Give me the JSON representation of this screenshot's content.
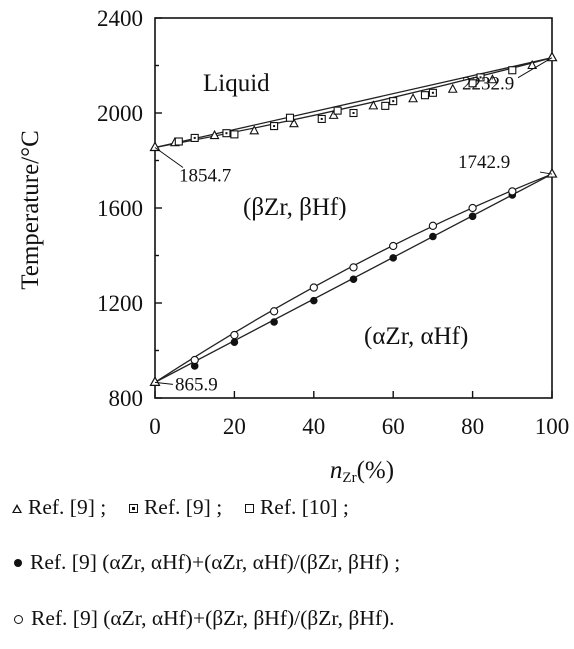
{
  "chart_data": {
    "type": "scatter",
    "title": "",
    "xlabel_main": "n",
    "xlabel_sub": "Zr",
    "xlabel_unit": "(%)",
    "ylabel": "Temperature/°C",
    "xlim": [
      0,
      100
    ],
    "ylim": [
      800,
      2400
    ],
    "x_ticks": [
      "0",
      "20",
      "40",
      "60",
      "80",
      "100"
    ],
    "y_ticks": [
      "800",
      "1200",
      "1600",
      "2000",
      "2400"
    ],
    "regions": {
      "liquid": "Liquid",
      "beta": "(βZr, βHf)",
      "alpha": "(αZr, αHf)"
    },
    "annotations": [
      {
        "label": "1854.7",
        "x": 0,
        "y": 1854.7
      },
      {
        "label": "2232.9",
        "x": 100,
        "y": 2232.9
      },
      {
        "label": "1742.9",
        "x": 100,
        "y": 1742.9
      },
      {
        "label": "865.9",
        "x": 0,
        "y": 865.9
      }
    ],
    "lines": [
      {
        "x": [
          0,
          100
        ],
        "y": [
          1854.7,
          2232.9
        ]
      },
      {
        "x": [
          0,
          100
        ],
        "y": [
          1854.7,
          2232.9
        ],
        "bow": 8
      },
      {
        "x": [
          0,
          100
        ],
        "y": [
          865.9,
          1742.9
        ]
      },
      {
        "x": [
          0,
          100
        ],
        "y": [
          865.9,
          1742.9
        ],
        "bow": -25
      }
    ],
    "series": [
      {
        "marker": "triangle",
        "points": [
          [
            5,
            1875
          ],
          [
            15,
            1905
          ],
          [
            25,
            1925
          ],
          [
            35,
            1955
          ],
          [
            45,
            1990
          ],
          [
            55,
            2030
          ],
          [
            65,
            2060
          ],
          [
            75,
            2100
          ],
          [
            85,
            2140
          ],
          [
            95,
            2200
          ]
        ]
      },
      {
        "marker": "square-dot",
        "points": [
          [
            10,
            1895
          ],
          [
            18,
            1915
          ],
          [
            30,
            1945
          ],
          [
            42,
            1975
          ],
          [
            50,
            2000
          ],
          [
            60,
            2050
          ],
          [
            70,
            2085
          ],
          [
            82,
            2150
          ]
        ]
      },
      {
        "marker": "square",
        "points": [
          [
            6,
            1880
          ],
          [
            20,
            1910
          ],
          [
            34,
            1980
          ],
          [
            46,
            2010
          ],
          [
            58,
            2030
          ],
          [
            68,
            2075
          ],
          [
            80,
            2125
          ],
          [
            90,
            2180
          ]
        ]
      },
      {
        "marker": "dot",
        "points": [
          [
            10,
            935
          ],
          [
            20,
            1035
          ],
          [
            30,
            1120
          ],
          [
            40,
            1210
          ],
          [
            50,
            1300
          ],
          [
            60,
            1390
          ],
          [
            70,
            1480
          ],
          [
            80,
            1565
          ],
          [
            90,
            1655
          ]
        ]
      },
      {
        "marker": "circle",
        "points": [
          [
            10,
            960
          ],
          [
            20,
            1065
          ],
          [
            30,
            1165
          ],
          [
            40,
            1265
          ],
          [
            50,
            1350
          ],
          [
            60,
            1440
          ],
          [
            70,
            1525
          ],
          [
            80,
            1600
          ],
          [
            90,
            1670
          ]
        ]
      }
    ],
    "legend": {
      "row1": [
        {
          "marker": "triangle",
          "text": "Ref. [9] ;"
        },
        {
          "marker": "square-dot",
          "text": "Ref. [9] ;"
        },
        {
          "marker": "square",
          "text": "Ref. [10] ;"
        }
      ],
      "row2": {
        "marker": "dot",
        "text": "Ref. [9] (αZr, αHf)+(αZr, αHf)/(βZr, βHf) ;"
      },
      "row3": {
        "marker": "circle",
        "text": "Ref. [9]  (αZr, αHf)+(βZr, βHf)/(βZr, βHf)."
      }
    }
  }
}
